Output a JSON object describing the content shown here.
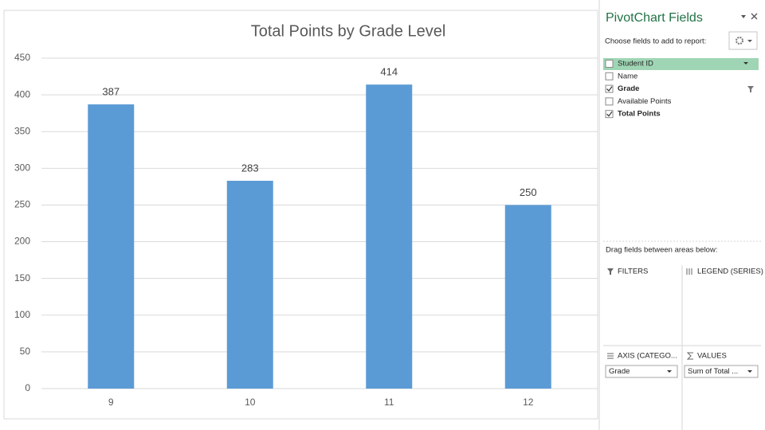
{
  "chart_data": {
    "type": "bar",
    "title": "Total Points by Grade Level",
    "categories": [
      "9",
      "10",
      "11",
      "12"
    ],
    "values": [
      387,
      283,
      414,
      250
    ],
    "color": "#5b9bd5",
    "ylim": [
      0,
      450
    ],
    "yticks": [
      0,
      50,
      100,
      150,
      200,
      250,
      300,
      350,
      400,
      450
    ],
    "grid": true
  },
  "pivot_panel": {
    "title": "PivotChart Fields",
    "instruction": "Choose fields to add to report:",
    "fields": [
      {
        "label": "Student ID",
        "checked": false,
        "highlighted": true
      },
      {
        "label": "Name",
        "checked": false,
        "highlighted": false
      },
      {
        "label": "Grade",
        "checked": true,
        "highlighted": false
      },
      {
        "label": "Available Points",
        "checked": false,
        "highlighted": false
      },
      {
        "label": "Total Points",
        "checked": true,
        "highlighted": false
      }
    ],
    "areas_instruction": "Drag fields between areas below:",
    "areas": {
      "filters": "FILTERS",
      "legend": "LEGEND (SERIES)",
      "axis": "AXIS (CATEGO...",
      "values": "VALUES",
      "axis_fields": [
        "Grade"
      ],
      "value_fields": [
        "Sum of Total ..."
      ]
    }
  }
}
